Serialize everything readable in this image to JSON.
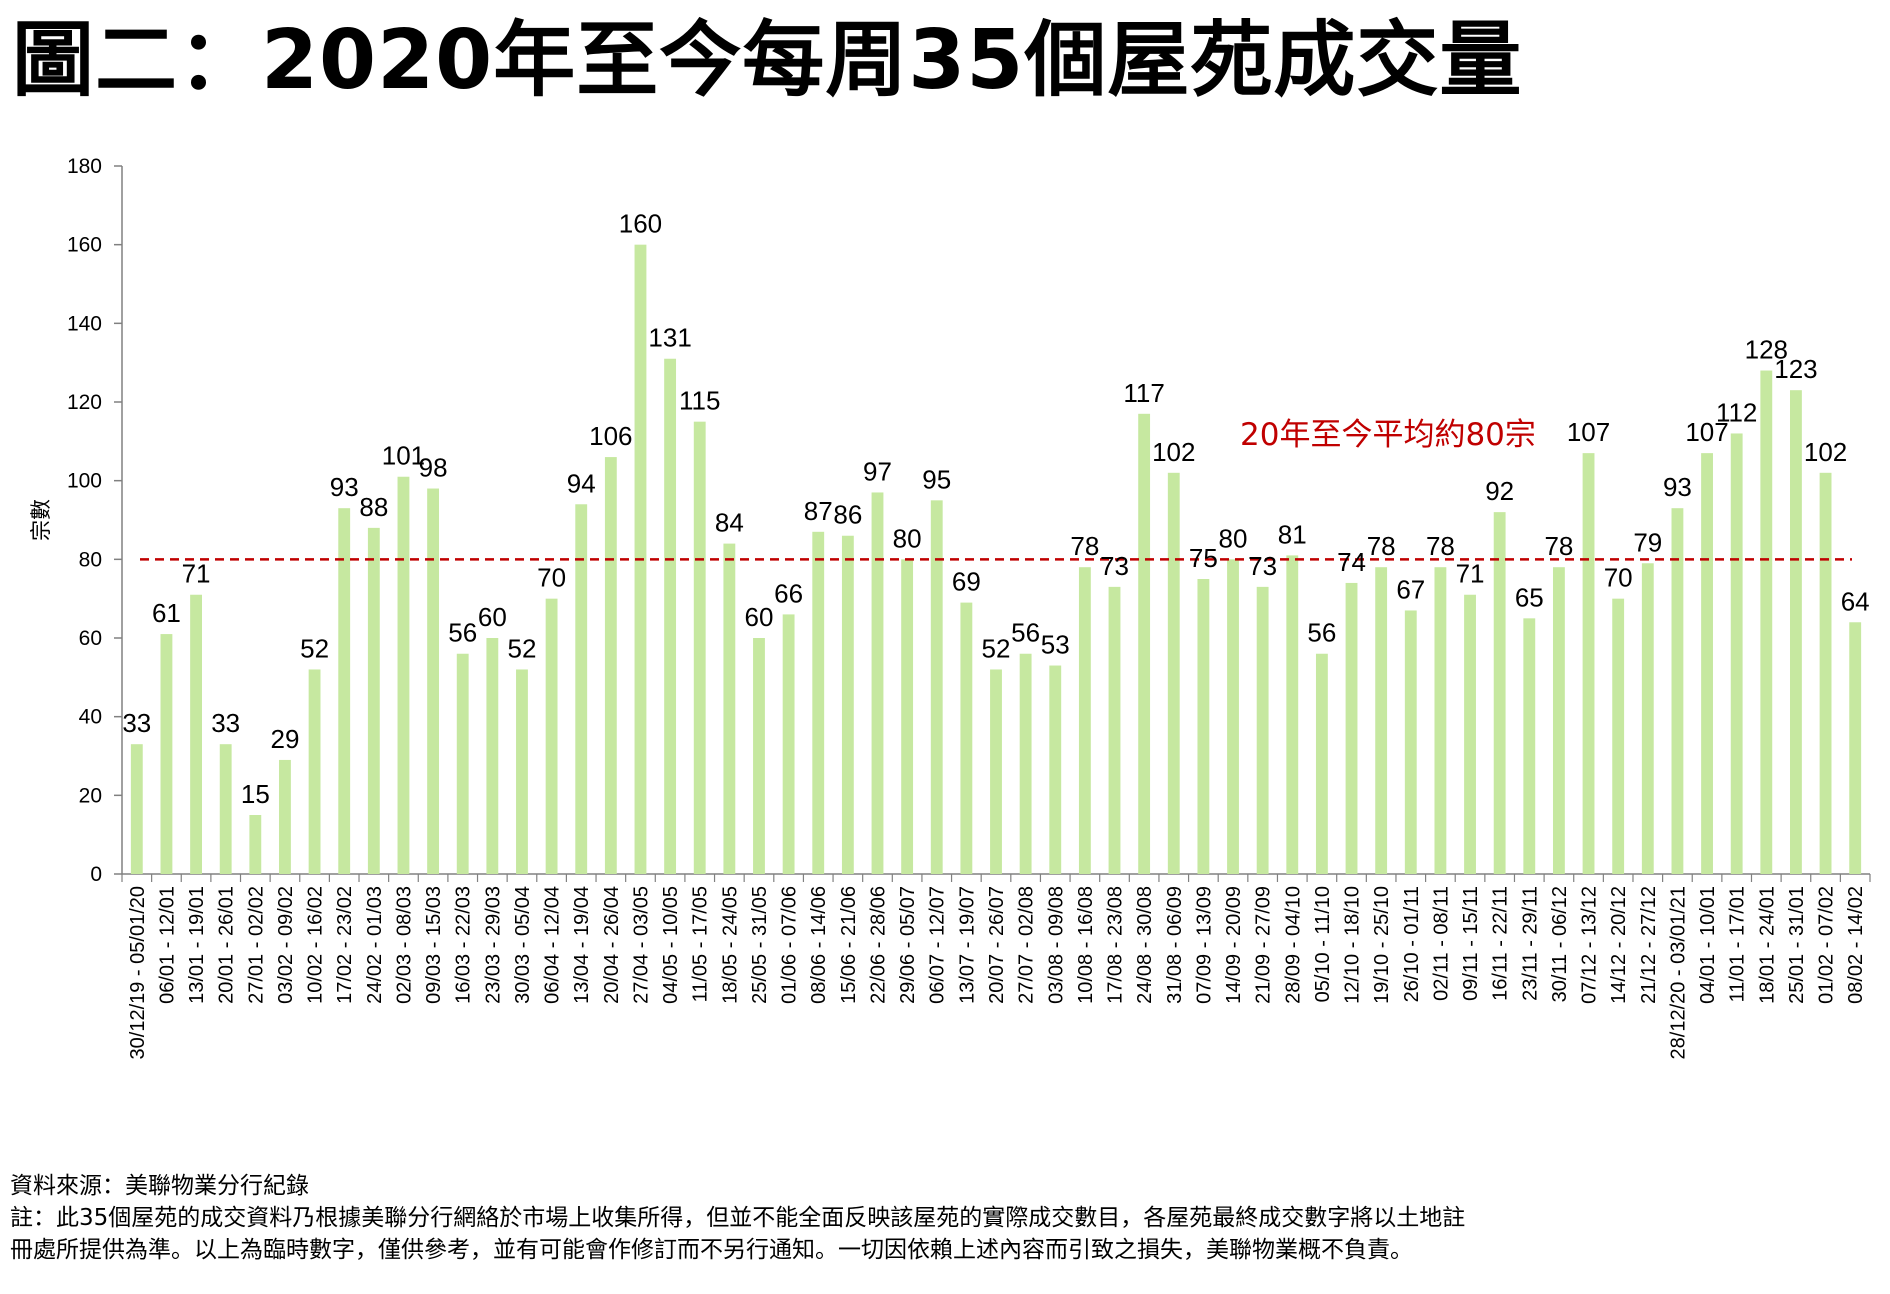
{
  "title": "圖二：2020年至今每周35個屋苑成交量",
  "chart_data": {
    "type": "bar",
    "title": "圖二：2020年至今每周35個屋苑成交量",
    "xlabel": "",
    "ylabel": "宗數",
    "ylim": [
      0,
      180
    ],
    "yticks": [
      0,
      20,
      40,
      60,
      80,
      100,
      120,
      140,
      160,
      180
    ],
    "bar_color": "#c6e8a0",
    "categories": [
      "30/12/19 - 05/01/20",
      "06/01 - 12/01",
      "13/01 - 19/01",
      "20/01 - 26/01",
      "27/01 - 02/02",
      "03/02 - 09/02",
      "10/02 - 16/02",
      "17/02 - 23/02",
      "24/02 - 01/03",
      "02/03 - 08/03",
      "09/03 - 15/03",
      "16/03 - 22/03",
      "23/03 - 29/03",
      "30/03 - 05/04",
      "06/04 - 12/04",
      "13/04 - 19/04",
      "20/04 - 26/04",
      "27/04 - 03/05",
      "04/05 - 10/05",
      "11/05 - 17/05",
      "18/05 - 24/05",
      "25/05 - 31/05",
      "01/06 - 07/06",
      "08/06 - 14/06",
      "15/06 - 21/06",
      "22/06 - 28/06",
      "29/06 - 05/07",
      "06/07 - 12/07",
      "13/07 - 19/07",
      "20/07 - 26/07",
      "27/07 - 02/08",
      "03/08 - 09/08",
      "10/08 - 16/08",
      "17/08 - 23/08",
      "24/08 - 30/08",
      "31/08 - 06/09",
      "07/09 - 13/09",
      "14/09 - 20/09",
      "21/09 - 27/09",
      "28/09 - 04/10",
      "05/10 - 11/10",
      "12/10 - 18/10",
      "19/10 - 25/10",
      "26/10 - 01/11",
      "02/11 - 08/11",
      "09/11 - 15/11",
      "16/11 - 22/11",
      "23/11 - 29/11",
      "30/11 - 06/12",
      "07/12 - 13/12",
      "14/12 - 20/12",
      "21/12 - 27/12",
      "28/12/20 - 03/01/21",
      "04/01 - 10/01",
      "11/01 - 17/01",
      "18/01 - 24/01",
      "25/01 - 31/01",
      "01/02 - 07/02",
      "08/02 - 14/02"
    ],
    "values": [
      33,
      61,
      71,
      33,
      15,
      29,
      52,
      93,
      88,
      101,
      98,
      56,
      60,
      52,
      70,
      94,
      106,
      160,
      131,
      115,
      84,
      60,
      66,
      87,
      86,
      97,
      80,
      95,
      69,
      52,
      56,
      53,
      78,
      73,
      117,
      102,
      75,
      80,
      73,
      81,
      56,
      74,
      78,
      67,
      78,
      71,
      92,
      65,
      78,
      107,
      70,
      79,
      93,
      107,
      112,
      128,
      123,
      102,
      64
    ],
    "reference_line": {
      "value": 80,
      "label": "20年至今平均約80宗",
      "color": "#c00000"
    }
  },
  "notes": {
    "source": "資料來源：美聯物業分行紀錄",
    "disclaimer_line1": "註：此35個屋苑的成交資料乃根據美聯分行網絡於市場上收集所得，但並不能全面反映該屋苑的實際成交數目，各屋苑最終成交數字將以土地註",
    "disclaimer_line2": "冊處所提供為準。以上為臨時數字，僅供參考，並有可能會作修訂而不另行通知。一切因依賴上述內容而引致之損失，美聯物業概不負責。"
  }
}
